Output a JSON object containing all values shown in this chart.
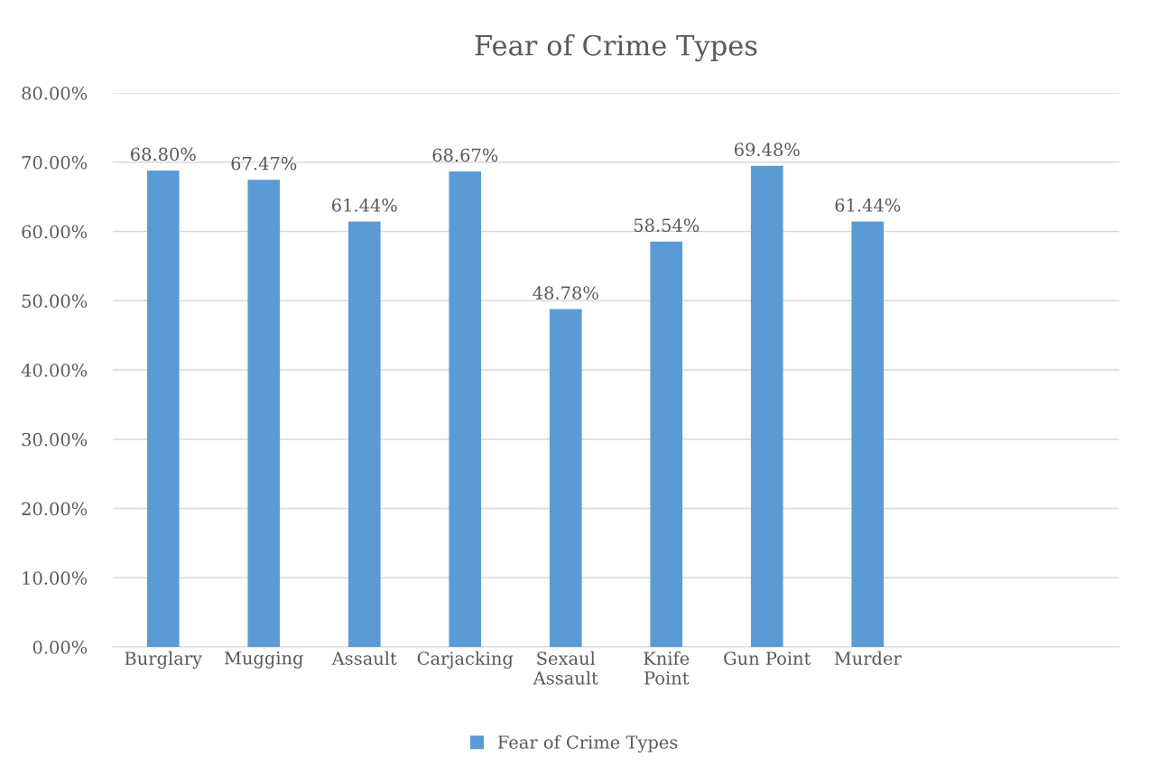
{
  "chart_data": {
    "type": "bar",
    "title": "Fear of Crime Types",
    "categories": [
      "Burglary",
      "Mugging",
      "Assault",
      "Carjacking",
      "Sexaul Assault",
      "Knife Point",
      "Gun Point",
      "Murder",
      null,
      null
    ],
    "series": [
      {
        "name": "Fear of Crime Types",
        "color": "#5b9bd5",
        "values": [
          68.8,
          67.47,
          61.44,
          68.67,
          48.78,
          58.54,
          69.48,
          61.44,
          null,
          null
        ],
        "value_labels": [
          "68.80%",
          "67.47%",
          "61.44%",
          "68.67%",
          "48.78%",
          "58.54%",
          "69.48%",
          "61.44%",
          null,
          null
        ]
      }
    ],
    "ylim": [
      0,
      80
    ],
    "yticks": [
      {
        "value": 0,
        "label": "0.00%"
      },
      {
        "value": 10,
        "label": "10.00%"
      },
      {
        "value": 20,
        "label": "20.00%"
      },
      {
        "value": 30,
        "label": "30.00%"
      },
      {
        "value": 40,
        "label": "40.00%"
      },
      {
        "value": 50,
        "label": "50.00%"
      },
      {
        "value": 60,
        "label": "60.00%"
      },
      {
        "value": 70,
        "label": "70.00%"
      },
      {
        "value": 80,
        "label": "80.00%"
      }
    ],
    "grid": "y",
    "legend": "bottom"
  }
}
